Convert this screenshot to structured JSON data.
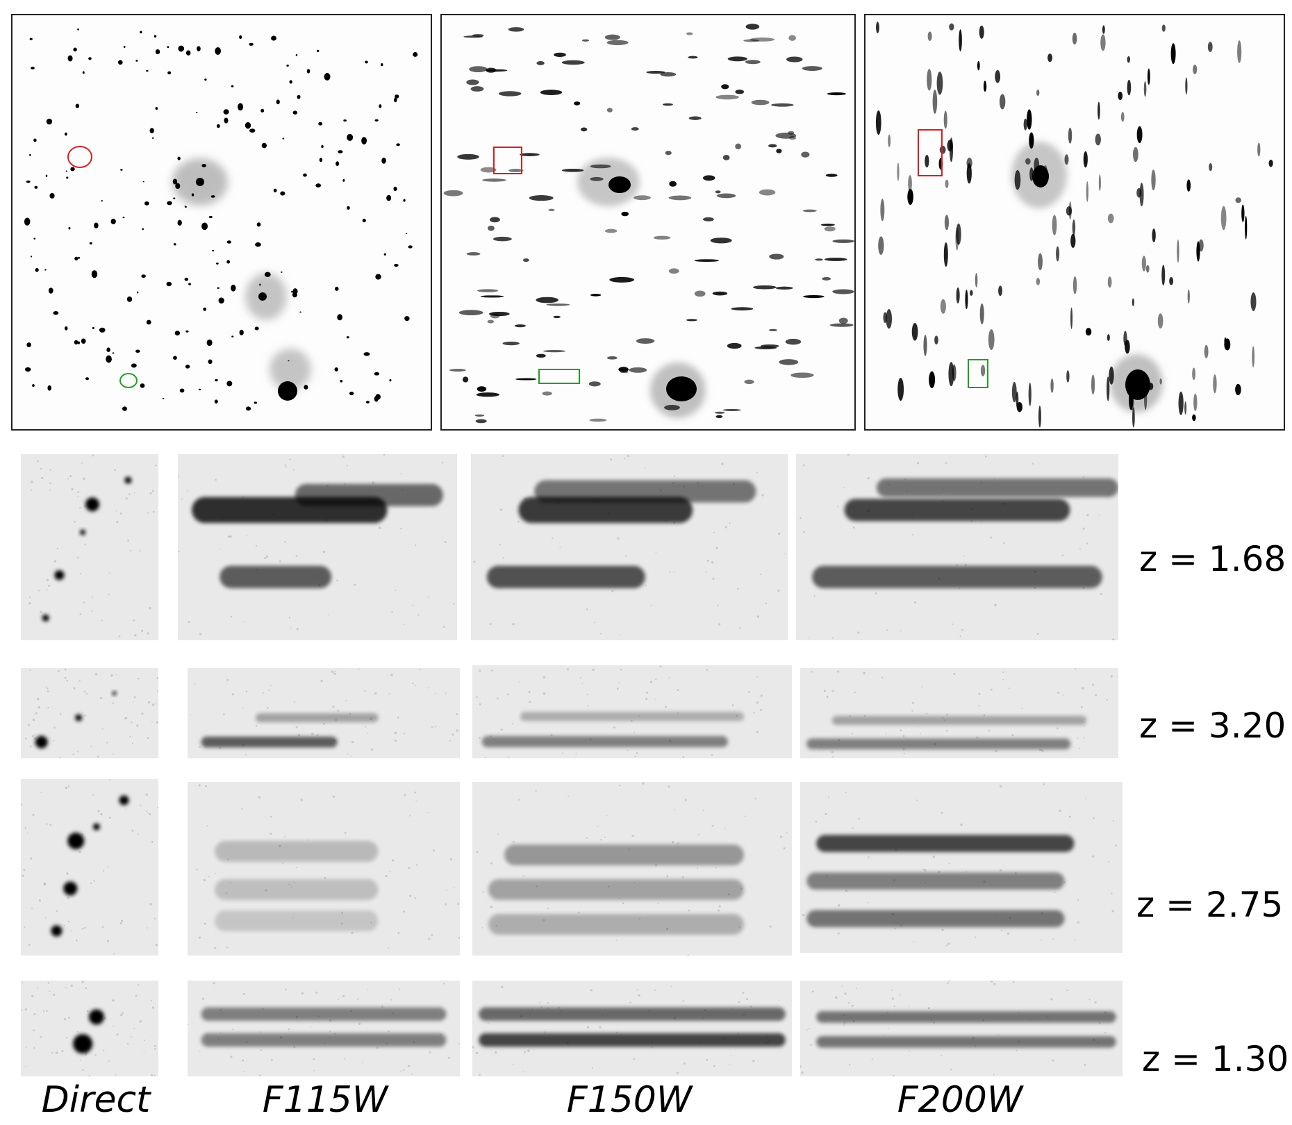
{
  "rows": [
    {
      "redshift": "z = 1.68"
    },
    {
      "redshift": "z = 3.20"
    },
    {
      "redshift": "z = 2.75"
    },
    {
      "redshift": "z = 1.30"
    }
  ],
  "columns": [
    "Direct",
    "F115W",
    "F150W",
    "F200W"
  ],
  "colors": {
    "red_marker": "#d42020",
    "green_marker": "#22a022",
    "ink": "#000000",
    "background": "#ffffff"
  }
}
